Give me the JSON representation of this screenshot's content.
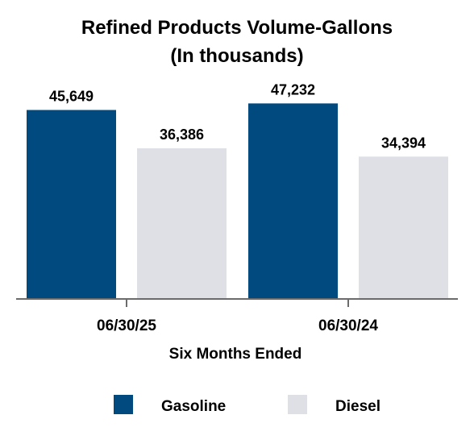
{
  "chart_data": {
    "type": "bar",
    "title": "Refined Products Volume-Gallons",
    "subtitle": "(In thousands)",
    "xlabel": "Six Months Ended",
    "ylabel": "",
    "categories": [
      "06/30/25",
      "06/30/24"
    ],
    "series": [
      {
        "name": "Gasoline",
        "color": "#004a80",
        "values": [
          45649,
          47232
        ],
        "labels": [
          "45,649",
          "47,232"
        ]
      },
      {
        "name": "Diesel",
        "color": "#dfe0e6",
        "values": [
          36386,
          34394
        ],
        "labels": [
          "36,386",
          "34,394"
        ]
      }
    ],
    "ylim": [
      0,
      51000
    ],
    "grid": false,
    "y_axis_visible": false,
    "legend_position": "bottom"
  }
}
